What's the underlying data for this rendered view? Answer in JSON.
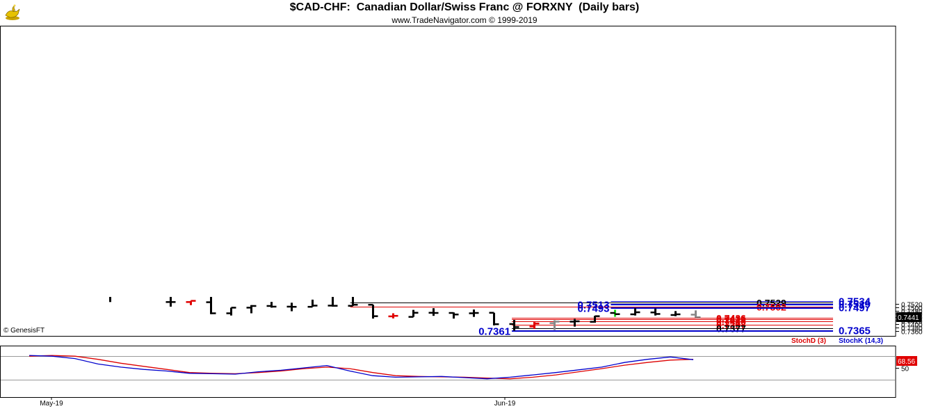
{
  "header": {
    "title": "$CAD-CHF:  Canadian Dollar/Swiss Franc @ FORXNY  (Daily bars)",
    "subtitle": "www.TradeNavigator.com © 1999-2019",
    "logo_icon": "gold-genie-lamp-logo"
  },
  "chart_data": [
    {
      "type": "ohlc",
      "ylim": [
        0.7352,
        0.7552
      ],
      "ticks": [
        0.736,
        0.738,
        0.74,
        0.742,
        0.744,
        0.746,
        0.748,
        0.75,
        0.752
      ],
      "tick_labels": [
        "0.7360",
        "0.7380",
        "0.7400",
        "0.7420",
        "0.7440",
        "0.7460",
        "0.7480",
        "0.7500",
        "0.7520"
      ],
      "last_price": {
        "value": 0.7441,
        "label": "0.7441"
      },
      "credit": "© GenesisFT",
      "bars": [
        {
          "i": 0,
          "o": null,
          "h": 0.756,
          "l": 0.753,
          "c": null,
          "color": "#000000"
        },
        {
          "i": 3,
          "o": 0.753,
          "h": 0.756,
          "l": 0.7503,
          "c": 0.753,
          "color": "#000000"
        },
        {
          "i": 4,
          "o": 0.753,
          "h": 0.7537,
          "l": 0.7512,
          "c": 0.7537,
          "color": "#e00000"
        },
        {
          "i": 5,
          "o": 0.7529,
          "h": 0.756,
          "l": 0.7459,
          "c": 0.7464,
          "color": "#000000"
        },
        {
          "i": 6,
          "o": 0.7464,
          "h": 0.7497,
          "l": 0.7451,
          "c": 0.7497,
          "color": "#000000"
        },
        {
          "i": 7,
          "o": 0.7497,
          "h": 0.7512,
          "l": 0.7464,
          "c": 0.7507,
          "color": "#000000"
        },
        {
          "i": 8,
          "o": 0.7507,
          "h": 0.7531,
          "l": 0.7497,
          "c": 0.7503,
          "color": "#000000"
        },
        {
          "i": 9,
          "o": 0.7503,
          "h": 0.7526,
          "l": 0.7476,
          "c": 0.7502,
          "color": "#000000"
        },
        {
          "i": 10,
          "o": 0.7502,
          "h": 0.7544,
          "l": 0.7502,
          "c": 0.7509,
          "color": "#000000"
        },
        {
          "i": 11,
          "o": 0.7509,
          "h": 0.756,
          "l": 0.7503,
          "c": 0.7508,
          "color": "#000000"
        },
        {
          "i": 12,
          "o": 0.7508,
          "h": 0.756,
          "l": 0.7507,
          "c": 0.7514,
          "color": "#000000"
        },
        {
          "i": 13,
          "o": 0.7514,
          "h": 0.7514,
          "l": 0.7433,
          "c": 0.7447,
          "color": "#000000"
        },
        {
          "i": 14,
          "o": 0.7446,
          "h": 0.7464,
          "l": 0.7434,
          "c": 0.7449,
          "color": "#e00000"
        },
        {
          "i": 15,
          "o": 0.7443,
          "h": 0.7484,
          "l": 0.7443,
          "c": 0.7467,
          "color": "#000000"
        },
        {
          "i": 16,
          "o": 0.7467,
          "h": 0.7494,
          "l": 0.7449,
          "c": 0.7466,
          "color": "#000000"
        },
        {
          "i": 17,
          "o": 0.7466,
          "h": 0.7469,
          "l": 0.7433,
          "c": 0.7457,
          "color": "#000000"
        },
        {
          "i": 18,
          "o": 0.7464,
          "h": 0.7486,
          "l": 0.7443,
          "c": 0.7466,
          "color": "#000000"
        },
        {
          "i": 19,
          "o": 0.7467,
          "h": 0.7467,
          "l": 0.7393,
          "c": 0.74,
          "color": "#000000"
        },
        {
          "i": 20,
          "o": 0.7401,
          "h": 0.7425,
          "l": 0.7362,
          "c": 0.7383,
          "color": "#000000"
        },
        {
          "i": 21,
          "o": 0.7386,
          "h": 0.7416,
          "l": 0.7373,
          "c": 0.7404,
          "color": "#e00000"
        },
        {
          "i": 22,
          "o": 0.7406,
          "h": 0.7423,
          "l": 0.7366,
          "c": 0.7415,
          "color": "#888888"
        },
        {
          "i": 23,
          "o": 0.7415,
          "h": 0.7431,
          "l": 0.7386,
          "c": 0.7417,
          "color": "#000000"
        },
        {
          "i": 24,
          "o": 0.7414,
          "h": 0.7449,
          "l": 0.7409,
          "c": 0.7447,
          "color": "#000000"
        },
        {
          "i": 25,
          "o": 0.7466,
          "h": 0.7476,
          "l": 0.7444,
          "c": 0.7459,
          "color": "#000000",
          "low_tail_color": "#22dd22"
        },
        {
          "i": 26,
          "o": 0.7458,
          "h": 0.7494,
          "l": 0.7451,
          "c": 0.747,
          "color": "#000000"
        },
        {
          "i": 27,
          "o": 0.7469,
          "h": 0.7492,
          "l": 0.7451,
          "c": 0.746,
          "color": "#000000"
        },
        {
          "i": 28,
          "o": 0.7454,
          "h": 0.7477,
          "l": 0.7447,
          "c": 0.7458,
          "color": "#000000"
        },
        {
          "i": 29,
          "o": 0.7456,
          "h": 0.7481,
          "l": 0.7438,
          "c": 0.7441,
          "color": "#888888"
        }
      ],
      "levels": [
        {
          "value": 0.7534,
          "label": "0.7534",
          "color": "#0000cc",
          "start_i": 24.8,
          "label_side": "right",
          "bold_big": true
        },
        {
          "value": 0.7529,
          "label": "0.7529",
          "color": "#000000",
          "start_i": 11.9,
          "label_side": "right",
          "bold_big": false
        },
        {
          "value": 0.7519,
          "label": "0.7519",
          "color": "#0000cc",
          "start_i": 24.8,
          "label_side": "right",
          "bold_big": true
        },
        {
          "value": 0.7513,
          "label": "0.7513",
          "color": "#0000cc",
          "start_i": 24.8,
          "label_side": "left",
          "bold_big": true
        },
        {
          "value": 0.7502,
          "label": "0.7502",
          "color": "#e00000",
          "start_i": 11.9,
          "label_side": "right",
          "bold_big": false
        },
        {
          "value": 0.7497,
          "label": "0.7497",
          "color": "#0000cc",
          "start_i": 24.8,
          "label_side": "right",
          "bold_big": true
        },
        {
          "value": 0.7493,
          "label": "0.7493",
          "color": "#0000cc",
          "start_i": 24.8,
          "label_side": "left",
          "bold_big": true
        },
        {
          "value": 0.7436,
          "label": "0.7436",
          "color": "#e00000",
          "start_i": 19.9,
          "label_side": "right",
          "bold_big": false
        },
        {
          "value": 0.7429,
          "label": "0.7429",
          "color": "#e00000",
          "start_i": 19.9,
          "label_side": "right",
          "bold_big": false
        },
        {
          "value": 0.7416,
          "label": "0.7416",
          "color": "#e00000",
          "start_i": 19.9,
          "label_side": "right",
          "bold_big": false
        },
        {
          "value": 0.7397,
          "label": "0.7397",
          "color": "#e00000",
          "start_i": 19.9,
          "label_side": "right",
          "bold_big": false
        },
        {
          "value": 0.7377,
          "label": "0.7377",
          "color": "#000000",
          "start_i": 19.9,
          "label_side": "right",
          "bold_big": false
        },
        {
          "value": 0.7365,
          "label": "0.7365",
          "color": "#0000cc",
          "start_i": 19.9,
          "label_side": "right",
          "bold_big": true
        },
        {
          "value": 0.7361,
          "label": "0.7361",
          "color": "#0000cc",
          "start_i": 19.9,
          "label_side": "left",
          "bold_big": true
        }
      ]
    },
    {
      "type": "line",
      "ylim": [
        0,
        100
      ],
      "ticks": [
        50
      ],
      "tick_labels": [
        "50"
      ],
      "last_value": {
        "value": 68.56,
        "label": "68.56"
      },
      "x_labels": [
        {
          "i": 0,
          "text": "May-19"
        },
        {
          "i": 20,
          "text": "Jun-19"
        }
      ],
      "series": [
        {
          "name": "StochD (3)",
          "color": "#dd0000",
          "values": [
            80,
            82,
            80,
            72,
            62,
            54,
            46,
            38,
            36,
            35,
            38,
            42,
            48,
            52,
            48,
            38,
            30,
            28,
            27,
            26,
            24,
            22,
            26,
            32,
            40,
            48,
            57,
            64,
            70,
            72
          ]
        },
        {
          "name": "StochK (14,3)",
          "color": "#0000cc",
          "values": [
            82,
            80,
            74,
            60,
            52,
            46,
            42,
            36,
            35,
            34,
            40,
            44,
            50,
            56,
            42,
            30,
            26,
            27,
            28,
            25,
            22,
            26,
            32,
            38,
            45,
            52,
            64,
            72,
            78,
            71
          ]
        }
      ]
    }
  ]
}
